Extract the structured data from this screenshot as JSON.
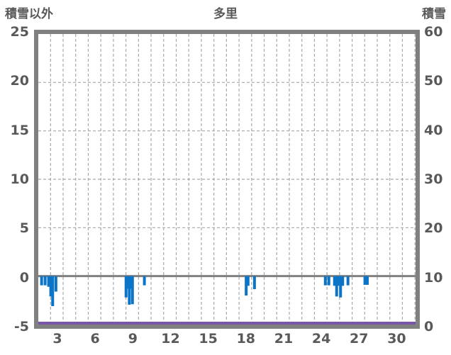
{
  "header": {
    "left_axis_title": "積雪以外",
    "chart_title": "多里",
    "right_axis_title": "積雪"
  },
  "colors": {
    "bar": "#0c74c6",
    "snow_line": "#7857a8",
    "frame": "#808080",
    "zero_line": "#808080",
    "grid": "#a8a8a8",
    "text": "#595959",
    "background": "#ffffff"
  },
  "chart_data": {
    "type": "bar",
    "title": "多里",
    "left_axis": {
      "label": "積雪以外",
      "ticks": [
        25,
        20,
        15,
        10,
        5,
        0,
        -5
      ],
      "range": [
        -5,
        25
      ],
      "gridline_values": [
        20,
        15,
        10,
        5
      ],
      "zero_line_value": 0
    },
    "right_axis": {
      "label": "積雪",
      "ticks": [
        60,
        50,
        40,
        30,
        20,
        10,
        0
      ],
      "range": [
        0,
        60
      ]
    },
    "x_axis": {
      "tick_labels": [
        3,
        6,
        9,
        12,
        15,
        18,
        21,
        24,
        27,
        30
      ],
      "day_range": [
        1,
        31
      ],
      "gridline_every_days": 1,
      "grid_style": "dashed"
    },
    "series": [
      {
        "name": "積雪以外",
        "type": "bar",
        "axis": "left",
        "color": "#0c74c6",
        "points": [
          {
            "day": 1.74,
            "value": -0.95
          },
          {
            "day": 2.02,
            "value": -0.95
          },
          {
            "day": 2.3,
            "value": -1.1
          },
          {
            "day": 2.47,
            "value": -2.1
          },
          {
            "day": 2.62,
            "value": -3.1
          },
          {
            "day": 2.88,
            "value": -1.6
          },
          {
            "day": 8.46,
            "value": -2.2
          },
          {
            "day": 8.6,
            "value": -1.3
          },
          {
            "day": 8.72,
            "value": -2.95
          },
          {
            "day": 8.85,
            "value": -1.3
          },
          {
            "day": 8.97,
            "value": -2.9
          },
          {
            "day": 9.92,
            "value": -0.95
          },
          {
            "day": 18.02,
            "value": -2.0
          },
          {
            "day": 18.17,
            "value": -1.0
          },
          {
            "day": 18.68,
            "value": -1.35
          },
          {
            "day": 24.32,
            "value": -0.95
          },
          {
            "day": 24.6,
            "value": -0.95
          },
          {
            "day": 25.05,
            "value": -1.0
          },
          {
            "day": 25.22,
            "value": -2.1
          },
          {
            "day": 25.39,
            "value": -1.0
          },
          {
            "day": 25.53,
            "value": -2.2
          },
          {
            "day": 25.7,
            "value": -1.0
          },
          {
            "day": 26.12,
            "value": -0.95
          },
          {
            "day": 27.47,
            "value": -0.9
          },
          {
            "day": 27.66,
            "value": -0.9
          }
        ]
      },
      {
        "name": "積雪",
        "type": "line",
        "axis": "right",
        "color": "#7857a8",
        "constant_value": 0
      }
    ]
  }
}
